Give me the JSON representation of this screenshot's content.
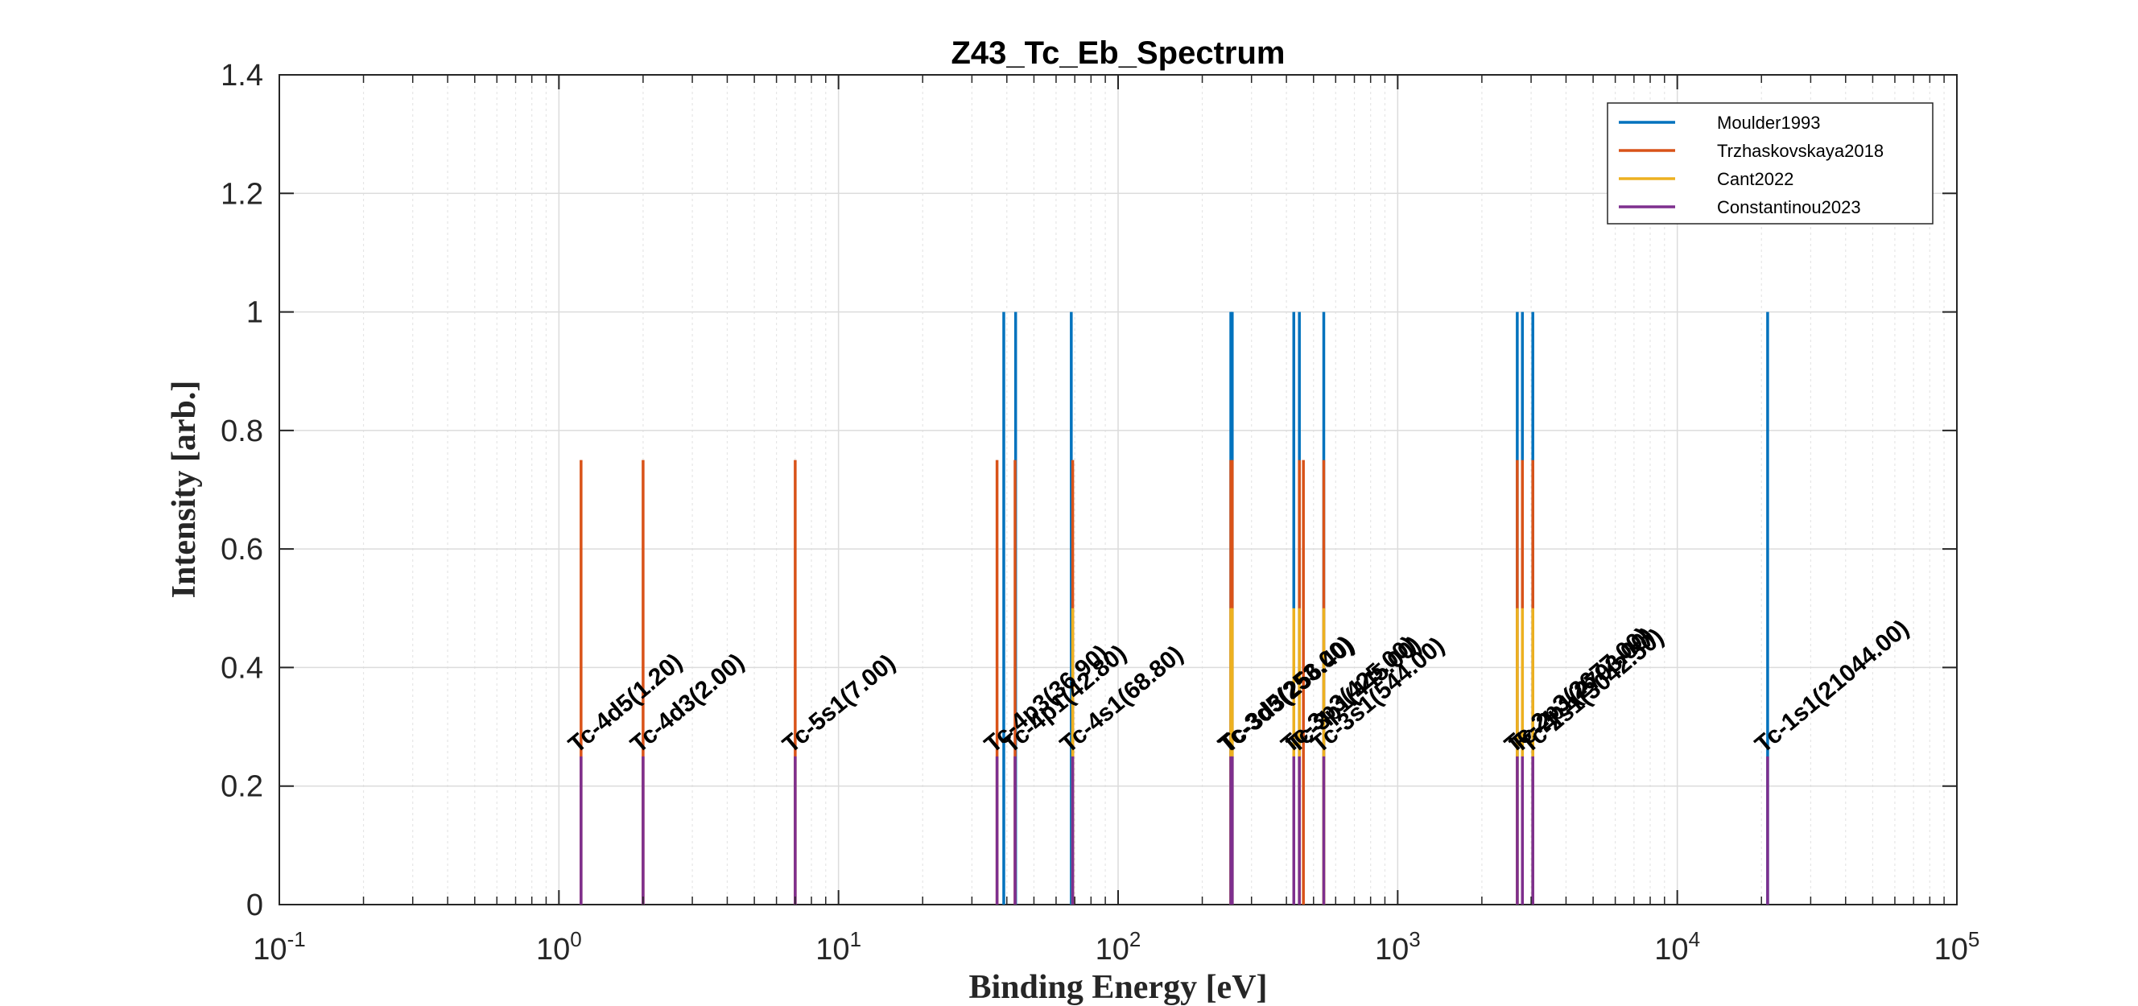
{
  "chart_data": {
    "type": "line",
    "title": "Z43_Tc_Eb_Spectrum",
    "xlabel": "Binding Energy [eV]",
    "ylabel": "Intensity [arb.]",
    "xscale": "log",
    "xlim": [
      0.1,
      100000
    ],
    "ylim": [
      0,
      1.4
    ],
    "grid": "on",
    "legend_position": "top-right",
    "y_ticks": [
      "0",
      "0.2",
      "0.4",
      "0.6",
      "0.8",
      "1",
      "1.2",
      "1.4"
    ],
    "x_ticks": [
      {
        "base": "10",
        "exp": "-1"
      },
      {
        "base": "10",
        "exp": "0"
      },
      {
        "base": "10",
        "exp": "1"
      },
      {
        "base": "10",
        "exp": "2"
      },
      {
        "base": "10",
        "exp": "3"
      },
      {
        "base": "10",
        "exp": "4"
      },
      {
        "base": "10",
        "exp": "5"
      }
    ],
    "series": [
      {
        "name": "Moulder1993",
        "color": "#0072BD",
        "height": 1.0,
        "x": [
          39,
          43,
          68,
          253,
          256,
          425,
          445,
          544,
          2677,
          2793,
          3043,
          21044
        ]
      },
      {
        "name": "Trzhaskovskaya2018",
        "color": "#D95319",
        "height": 0.75,
        "x": [
          1.2,
          2.0,
          7.0,
          36.9,
          42.8,
          68.8,
          253,
          256,
          445,
          460,
          544,
          2677,
          2793,
          3043
        ]
      },
      {
        "name": "Cant2022",
        "color": "#EDB120",
        "height": 0.5,
        "x": [
          68.8,
          253,
          256,
          425,
          445,
          544,
          2677,
          2793,
          3043
        ]
      },
      {
        "name": "Constantinou2023",
        "color": "#7E2F8E",
        "height": 0.25,
        "x": [
          1.2,
          2.0,
          7.0,
          36.9,
          42.8,
          68.8,
          253,
          256,
          425,
          445,
          544,
          2677,
          2793,
          3043,
          21044
        ]
      }
    ],
    "annotations": [
      {
        "x": 1.2,
        "text": "Tc-4d5(1.20)"
      },
      {
        "x": 2.0,
        "text": "Tc-4d3(2.00)"
      },
      {
        "x": 7.0,
        "text": "Tc-5s1(7.00)"
      },
      {
        "x": 36.9,
        "text": "Tc-4p3(36.90)"
      },
      {
        "x": 42.8,
        "text": "Tc-4p1(42.80)"
      },
      {
        "x": 68.8,
        "text": "Tc-4s1(68.80)"
      },
      {
        "x": 253.0,
        "text": "Tc-3d5(253.00)"
      },
      {
        "x": 256.4,
        "text": "Tc-3d3(256.40)"
      },
      {
        "x": 425.0,
        "text": "Tc-3p3(425.00)"
      },
      {
        "x": 445.0,
        "text": "Tc-3p1(445.00)"
      },
      {
        "x": 544.0,
        "text": "Tc-3s1(544.00)"
      },
      {
        "x": 2677.0,
        "text": "Tc-2p3(2677.00)"
      },
      {
        "x": 2793.0,
        "text": "Tc-2p1(2793.00)"
      },
      {
        "x": 3042.5,
        "text": "Tc-2s1(3042.50)"
      },
      {
        "x": 21044.0,
        "text": "Tc-1s1(21044.00)"
      }
    ]
  }
}
